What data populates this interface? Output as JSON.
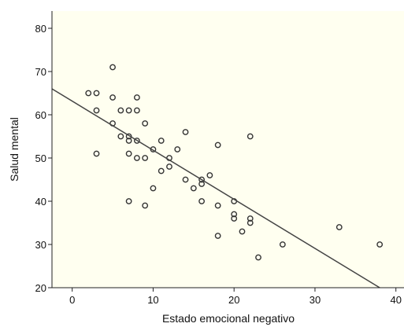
{
  "chart_data": {
    "type": "scatter",
    "title": "",
    "xlabel": "Estado emocional negativo",
    "ylabel": "Salud mental",
    "xlim": [
      -2.5,
      41
    ],
    "ylim": [
      20,
      84
    ],
    "xticks": [
      0,
      10,
      20,
      30,
      40
    ],
    "yticks": [
      20,
      30,
      40,
      50,
      60,
      70,
      80
    ],
    "grid": false,
    "background_color": "#fffff0",
    "marker_color": "#333333",
    "line_color": "#444444",
    "points": [
      {
        "x": 5,
        "y": 71
      },
      {
        "x": 2,
        "y": 65
      },
      {
        "x": 3,
        "y": 65
      },
      {
        "x": 5,
        "y": 64
      },
      {
        "x": 8,
        "y": 64
      },
      {
        "x": 3,
        "y": 61
      },
      {
        "x": 6,
        "y": 61
      },
      {
        "x": 7,
        "y": 61
      },
      {
        "x": 8,
        "y": 61
      },
      {
        "x": 5,
        "y": 58
      },
      {
        "x": 9,
        "y": 58
      },
      {
        "x": 14,
        "y": 56
      },
      {
        "x": 6,
        "y": 55
      },
      {
        "x": 7,
        "y": 55
      },
      {
        "x": 22,
        "y": 55
      },
      {
        "x": 7,
        "y": 54
      },
      {
        "x": 8,
        "y": 54
      },
      {
        "x": 11,
        "y": 54
      },
      {
        "x": 18,
        "y": 53
      },
      {
        "x": 10,
        "y": 52
      },
      {
        "x": 13,
        "y": 52
      },
      {
        "x": 3,
        "y": 51
      },
      {
        "x": 7,
        "y": 51
      },
      {
        "x": 8,
        "y": 50
      },
      {
        "x": 9,
        "y": 50
      },
      {
        "x": 12,
        "y": 50
      },
      {
        "x": 12,
        "y": 48
      },
      {
        "x": 11,
        "y": 47
      },
      {
        "x": 17,
        "y": 46
      },
      {
        "x": 14,
        "y": 45
      },
      {
        "x": 16,
        "y": 45
      },
      {
        "x": 16,
        "y": 44
      },
      {
        "x": 10,
        "y": 43
      },
      {
        "x": 15,
        "y": 43
      },
      {
        "x": 7,
        "y": 40
      },
      {
        "x": 16,
        "y": 40
      },
      {
        "x": 20,
        "y": 40
      },
      {
        "x": 9,
        "y": 39
      },
      {
        "x": 18,
        "y": 39
      },
      {
        "x": 20,
        "y": 37
      },
      {
        "x": 20,
        "y": 36
      },
      {
        "x": 22,
        "y": 36
      },
      {
        "x": 22,
        "y": 35
      },
      {
        "x": 33,
        "y": 34
      },
      {
        "x": 21,
        "y": 33
      },
      {
        "x": 18,
        "y": 32
      },
      {
        "x": 26,
        "y": 30
      },
      {
        "x": 38,
        "y": 30
      },
      {
        "x": 23,
        "y": 27
      }
    ],
    "fit_line": {
      "x": [
        -2.5,
        38
      ],
      "y": [
        66,
        20
      ]
    }
  }
}
